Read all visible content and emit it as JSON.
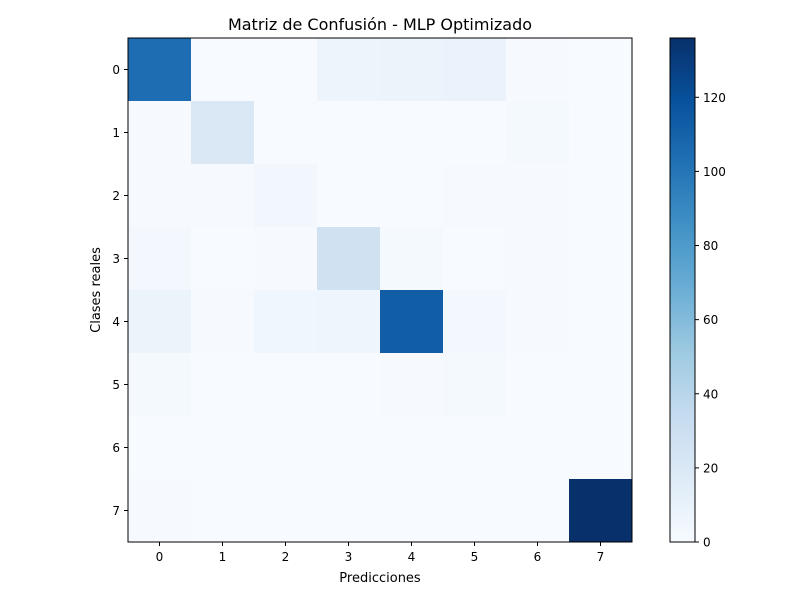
{
  "chart_data": {
    "type": "heatmap",
    "title": "Matriz de Confusión - MLP Optimizado",
    "xlabel": "Predicciones",
    "ylabel": "Clases reales",
    "x_ticks": [
      "0",
      "1",
      "2",
      "3",
      "4",
      "5",
      "6",
      "7"
    ],
    "y_ticks": [
      "0",
      "1",
      "2",
      "3",
      "4",
      "5",
      "6",
      "7"
    ],
    "matrix": [
      [
        104,
        0,
        0,
        7,
        8,
        9,
        1,
        0
      ],
      [
        1,
        20,
        0,
        0,
        0,
        0,
        2,
        0
      ],
      [
        1,
        1,
        4,
        0,
        0,
        1,
        1,
        0
      ],
      [
        3,
        0,
        1,
        27,
        2,
        0,
        1,
        0
      ],
      [
        8,
        1,
        5,
        6,
        112,
        3,
        1,
        0
      ],
      [
        2,
        0,
        0,
        0,
        1,
        2,
        0,
        0
      ],
      [
        0,
        0,
        0,
        0,
        0,
        0,
        0,
        0
      ],
      [
        1,
        0,
        0,
        0,
        0,
        0,
        0,
        136
      ]
    ],
    "colormap": "Blues",
    "color_range": [
      0,
      136
    ],
    "colorbar_ticks": [
      0,
      20,
      40,
      60,
      80,
      100,
      120
    ]
  }
}
